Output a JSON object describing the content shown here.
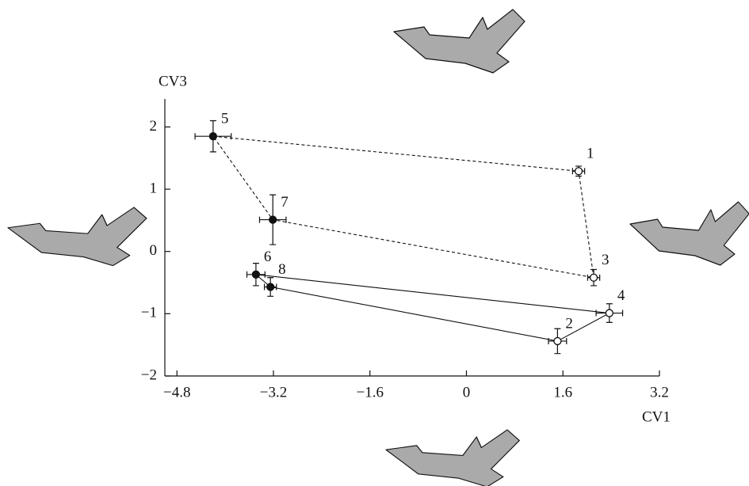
{
  "chart_data": {
    "type": "scatter",
    "xlabel": "CV1",
    "ylabel": "CV3",
    "xlim": [
      -5.0,
      3.2
    ],
    "ylim": [
      -2,
      2.45
    ],
    "xticks": [
      {
        "value": -4.8,
        "label": "−4.8"
      },
      {
        "value": -3.2,
        "label": "−3.2"
      },
      {
        "value": -1.6,
        "label": "−1.6"
      },
      0,
      1.6,
      3.2
    ],
    "yticks": [
      {
        "value": -2,
        "label": "−2"
      },
      {
        "value": -1,
        "label": "−1"
      },
      0,
      1,
      2
    ],
    "series": [
      {
        "line": "dashed",
        "labels": [
          "5",
          "1",
          "3",
          "7"
        ],
        "x": [
          -4.2,
          1.86,
          2.11,
          -3.21
        ],
        "values": [
          1.85,
          1.29,
          -0.42,
          0.51
        ],
        "xerr": [
          0.3,
          0.1,
          0.1,
          0.22
        ],
        "yerr": [
          0.25,
          0.08,
          0.13,
          0.4
        ],
        "marker_fill": [
          "#111",
          "#fff",
          "#fff",
          "#111"
        ]
      },
      {
        "line": "solid",
        "labels": [
          "6",
          "4",
          "2",
          "8"
        ],
        "x": [
          -3.49,
          2.37,
          1.51,
          -3.25
        ],
        "values": [
          -0.37,
          -0.99,
          -1.44,
          -0.57
        ],
        "xerr": [
          0.15,
          0.22,
          0.15,
          0.1
        ],
        "yerr": [
          0.18,
          0.15,
          0.2,
          0.15
        ],
        "marker_fill": [
          "#111",
          "#fff",
          "#fff",
          "#111"
        ]
      }
    ]
  }
}
